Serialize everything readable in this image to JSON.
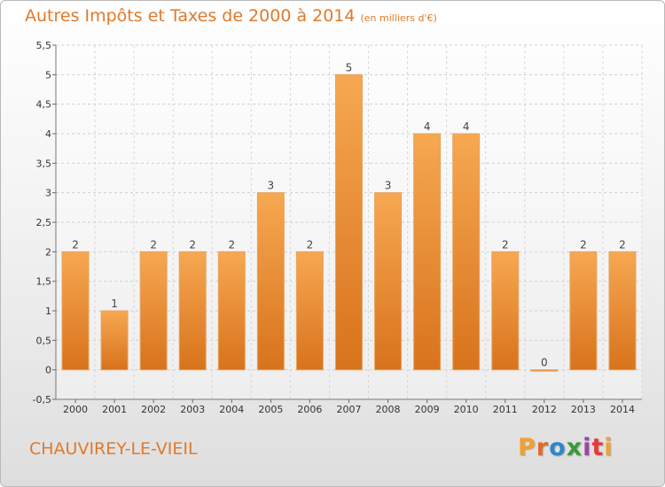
{
  "chart_data": {
    "type": "bar",
    "title": "Autres Impôts et Taxes de 2000 à 2014",
    "subtitle": "(en milliers d'€)",
    "categories": [
      "2000",
      "2001",
      "2002",
      "2003",
      "2004",
      "2005",
      "2006",
      "2007",
      "2008",
      "2009",
      "2010",
      "2011",
      "2012",
      "2013",
      "2014"
    ],
    "values": [
      2,
      1,
      2,
      2,
      2,
      3,
      2,
      5,
      3,
      4,
      4,
      2,
      0,
      2,
      2
    ],
    "data_labels": [
      "2",
      "1",
      "2",
      "2",
      "2",
      "3",
      "2",
      "5",
      "3",
      "4",
      "4",
      "2",
      "0",
      "2",
      "2"
    ],
    "ylim": [
      -0.5,
      5.5
    ],
    "yticks": [
      -0.5,
      0,
      0.5,
      1,
      1.5,
      2,
      2.5,
      3,
      3.5,
      4,
      4.5,
      5,
      5.5
    ],
    "ytick_labels": [
      "-0,5",
      "0",
      "0,5",
      "1",
      "1,5",
      "2",
      "2,5",
      "3",
      "3,5",
      "4",
      "4,5",
      "5",
      "5,5"
    ],
    "grid": true,
    "bar_color": "#f29a44",
    "bar_color_dark": "#d8761e"
  },
  "footer": {
    "location": "CHAUVIREY-LE-VIEIL",
    "brand_letters": [
      "P",
      "r",
      "o",
      "x",
      "i",
      "t",
      "i"
    ],
    "brand_colors": [
      "#f0a22e",
      "#e46a2a",
      "#2f86c8",
      "#3a9a3c",
      "#9b46a3",
      "#e23b3b",
      "#f0a22e"
    ]
  }
}
